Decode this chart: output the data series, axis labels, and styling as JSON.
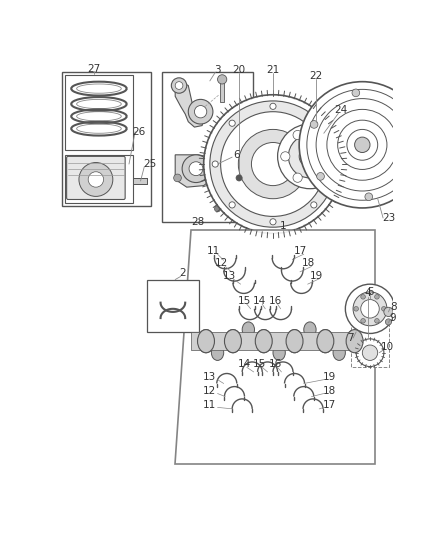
{
  "bg_color": "#ffffff",
  "fig_width": 4.38,
  "fig_height": 5.33,
  "lc": "#555555",
  "tc": "#333333",
  "fs": 7.5
}
